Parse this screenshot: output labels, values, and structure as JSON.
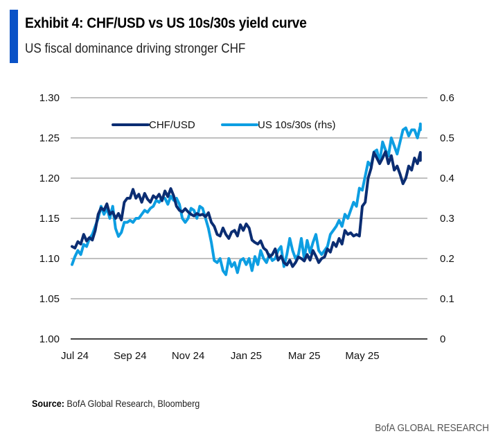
{
  "header": {
    "title": "Exhibit 4: CHF/USD vs US 10s/30s yield curve",
    "subtitle": "US fiscal dominance driving stronger CHF",
    "accent_color": "#0a52c7"
  },
  "footer": {
    "source_label": "Source:",
    "source_text": " BofA Global Research, Bloomberg",
    "brand": "BofA GLOBAL RESEARCH"
  },
  "chart_data": {
    "type": "line",
    "title": "Exhibit 4: CHF/USD vs US 10s/30s yield curve",
    "subtitle": "US fiscal dominance driving stronger CHF",
    "xlabel": "",
    "ylabel": "",
    "ylabel_right": "",
    "x_ticks": [
      "Jul 24",
      "Sep 24",
      "Nov 24",
      "Jan 25",
      "Mar 25",
      "May 25"
    ],
    "x_range": [
      "Jul 24",
      "Jun 25"
    ],
    "ylim": [
      1.0,
      1.3
    ],
    "y_ticks": [
      "1.00",
      "1.05",
      "1.10",
      "1.15",
      "1.20",
      "1.25",
      "1.30"
    ],
    "ylim_right": [
      0,
      0.6
    ],
    "y_ticks_right": [
      "0",
      "0.1",
      "0.2",
      "0.3",
      "0.4",
      "0.5",
      "0.6"
    ],
    "grid": true,
    "legend_position": "top-center",
    "x_span_months": 12,
    "series": [
      {
        "name": "CHF/USD",
        "axis": "left",
        "color": "#0b2d72",
        "t": [
          0,
          0.1,
          0.2,
          0.3,
          0.4,
          0.5,
          0.6,
          0.7,
          0.8,
          0.9,
          1.0,
          1.1,
          1.2,
          1.3,
          1.4,
          1.5,
          1.6,
          1.7,
          1.8,
          1.9,
          2.0,
          2.1,
          2.2,
          2.3,
          2.4,
          2.5,
          2.6,
          2.7,
          2.8,
          2.9,
          3.0,
          3.1,
          3.2,
          3.3,
          3.4,
          3.5,
          3.6,
          3.7,
          3.8,
          3.9,
          4.0,
          4.1,
          4.2,
          4.3,
          4.4,
          4.5,
          4.6,
          4.7,
          4.8,
          4.9,
          5.0,
          5.1,
          5.2,
          5.3,
          5.4,
          5.5,
          5.6,
          5.7,
          5.8,
          5.9,
          6.0,
          6.1,
          6.2,
          6.3,
          6.4,
          6.5,
          6.6,
          6.7,
          6.8,
          6.9,
          7.0,
          7.1,
          7.2,
          7.3,
          7.4,
          7.5,
          7.6,
          7.7,
          7.8,
          7.9,
          8.0,
          8.1,
          8.2,
          8.3,
          8.4,
          8.5,
          8.6,
          8.7,
          8.8,
          8.9,
          9.0,
          9.1,
          9.2,
          9.3,
          9.4,
          9.5,
          9.6,
          9.7,
          9.8,
          9.9,
          10.0,
          10.1,
          10.2,
          10.3,
          10.4,
          10.5,
          10.6,
          10.7,
          10.8,
          10.9,
          11.0,
          11.1,
          11.2,
          11.3,
          11.4,
          11.5,
          11.6,
          11.7,
          11.8,
          11.9,
          12.0,
          12.1,
          12.2
        ],
        "values": [
          1.115,
          1.113,
          1.121,
          1.118,
          1.13,
          1.122,
          1.126,
          1.123,
          1.135,
          1.155,
          1.163,
          1.16,
          1.168,
          1.155,
          1.158,
          1.15,
          1.156,
          1.148,
          1.17,
          1.175,
          1.175,
          1.186,
          1.175,
          1.18,
          1.17,
          1.181,
          1.174,
          1.17,
          1.178,
          1.175,
          1.18,
          1.172,
          1.184,
          1.177,
          1.187,
          1.178,
          1.165,
          1.16,
          1.158,
          1.162,
          1.158,
          1.155,
          1.153,
          1.156,
          1.154,
          1.155,
          1.152,
          1.157,
          1.145,
          1.14,
          1.13,
          1.128,
          1.138,
          1.13,
          1.125,
          1.133,
          1.135,
          1.128,
          1.142,
          1.135,
          1.143,
          1.138,
          1.123,
          1.12,
          1.118,
          1.122,
          1.113,
          1.11,
          1.102,
          1.105,
          1.112,
          1.098,
          1.103,
          1.095,
          1.092,
          1.098,
          1.09,
          1.095,
          1.102,
          1.1,
          1.097,
          1.105,
          1.098,
          1.11,
          1.103,
          1.095,
          1.1,
          1.102,
          1.112,
          1.108,
          1.12,
          1.115,
          1.125,
          1.118,
          1.135,
          1.13,
          1.132,
          1.128,
          1.13,
          1.128,
          1.165,
          1.17,
          1.2,
          1.212,
          1.232,
          1.225,
          1.218,
          1.225,
          1.233,
          1.218,
          1.228,
          1.21,
          1.215,
          1.205,
          1.193,
          1.2,
          1.215,
          1.21,
          1.225,
          1.218,
          1.232,
          1.228,
          1.222,
          1.235,
          1.233,
          1.245,
          1.252
        ]
      },
      {
        "name": "US 10s/30s (rhs)",
        "axis": "right",
        "color": "#0d9ee2",
        "t": [
          0,
          0.1,
          0.2,
          0.3,
          0.4,
          0.5,
          0.6,
          0.7,
          0.8,
          0.9,
          1.0,
          1.1,
          1.2,
          1.3,
          1.4,
          1.5,
          1.6,
          1.7,
          1.8,
          1.9,
          2.0,
          2.1,
          2.2,
          2.3,
          2.4,
          2.5,
          2.6,
          2.7,
          2.8,
          2.9,
          3.0,
          3.1,
          3.2,
          3.3,
          3.4,
          3.5,
          3.6,
          3.7,
          3.8,
          3.9,
          4.0,
          4.1,
          4.2,
          4.3,
          4.4,
          4.5,
          4.6,
          4.7,
          4.8,
          4.9,
          5.0,
          5.1,
          5.2,
          5.3,
          5.4,
          5.5,
          5.6,
          5.7,
          5.8,
          5.9,
          6.0,
          6.1,
          6.2,
          6.3,
          6.4,
          6.5,
          6.6,
          6.7,
          6.8,
          6.9,
          7.0,
          7.1,
          7.2,
          7.3,
          7.4,
          7.5,
          7.6,
          7.7,
          7.8,
          7.9,
          8.0,
          8.1,
          8.2,
          8.3,
          8.4,
          8.5,
          8.6,
          8.7,
          8.8,
          8.9,
          9.0,
          9.1,
          9.2,
          9.3,
          9.4,
          9.5,
          9.6,
          9.7,
          9.8,
          9.9,
          10.0,
          10.1,
          10.2,
          10.3,
          10.4,
          10.5,
          10.6,
          10.7,
          10.8,
          10.9,
          11.0,
          11.1,
          11.2,
          11.3,
          11.4,
          11.5,
          11.6,
          11.7,
          11.8,
          11.9,
          12.0,
          12.1,
          12.2
        ],
        "values": [
          0.185,
          0.205,
          0.22,
          0.21,
          0.235,
          0.23,
          0.25,
          0.26,
          0.28,
          0.3,
          0.33,
          0.31,
          0.325,
          0.3,
          0.33,
          0.275,
          0.255,
          0.265,
          0.29,
          0.29,
          0.295,
          0.29,
          0.3,
          0.3,
          0.31,
          0.32,
          0.315,
          0.325,
          0.33,
          0.345,
          0.34,
          0.35,
          0.35,
          0.335,
          0.355,
          0.345,
          0.35,
          0.335,
          0.3,
          0.29,
          0.3,
          0.325,
          0.32,
          0.3,
          0.33,
          0.325,
          0.3,
          0.275,
          0.24,
          0.195,
          0.19,
          0.2,
          0.17,
          0.16,
          0.2,
          0.18,
          0.19,
          0.165,
          0.195,
          0.2,
          0.185,
          0.2,
          0.17,
          0.205,
          0.185,
          0.22,
          0.2,
          0.19,
          0.21,
          0.195,
          0.2,
          0.22,
          0.23,
          0.18,
          0.21,
          0.25,
          0.22,
          0.2,
          0.21,
          0.25,
          0.2,
          0.245,
          0.215,
          0.24,
          0.26,
          0.22,
          0.21,
          0.22,
          0.23,
          0.26,
          0.27,
          0.28,
          0.295,
          0.28,
          0.31,
          0.3,
          0.32,
          0.34,
          0.33,
          0.375,
          0.37,
          0.405,
          0.44,
          0.43,
          0.465,
          0.47,
          0.44,
          0.49,
          0.47,
          0.455,
          0.5,
          0.48,
          0.46,
          0.49,
          0.52,
          0.525,
          0.505,
          0.52,
          0.52,
          0.5,
          0.53,
          0.52,
          0.535,
          0.555,
          0.545,
          0.53,
          0.54
        ]
      }
    ]
  }
}
